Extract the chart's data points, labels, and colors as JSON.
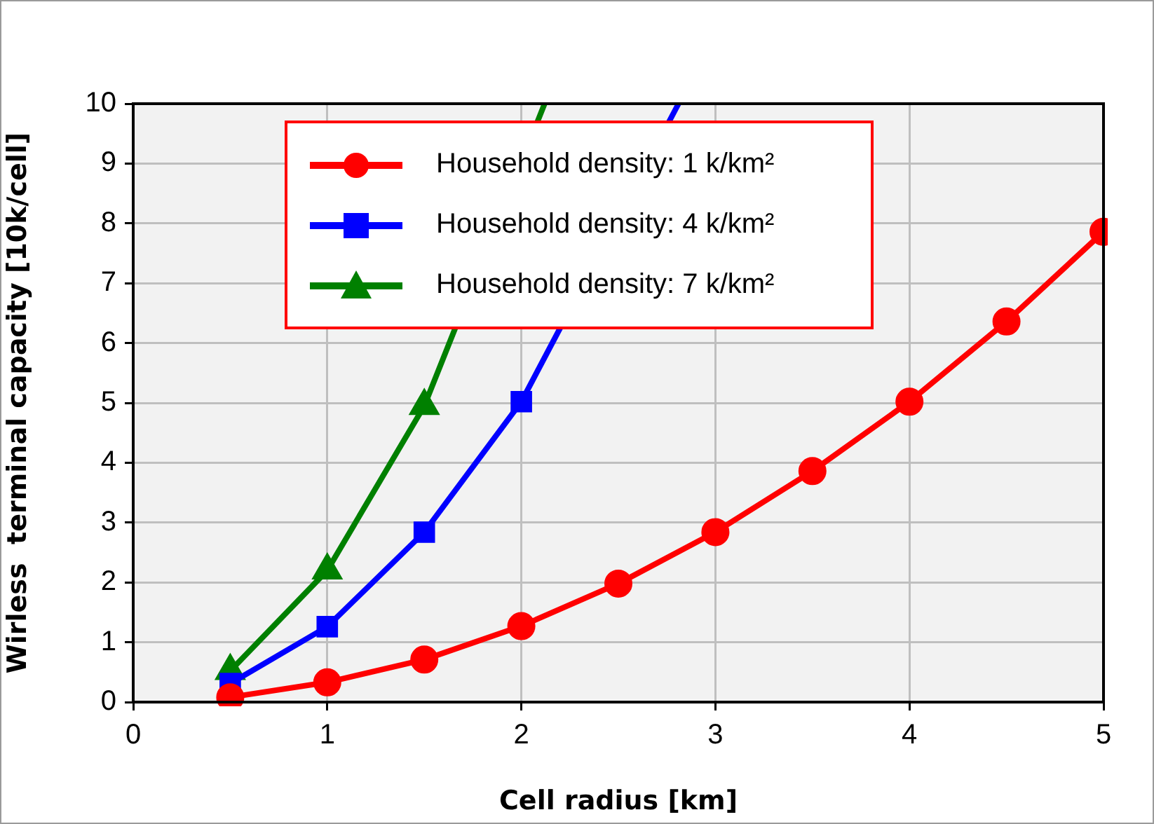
{
  "chart_data": {
    "type": "line",
    "xlabel": "Cell radius [km]",
    "ylabel": "Wirless  terminal capacity [10k/cell]",
    "xlim": [
      0,
      5
    ],
    "xticks": [
      0,
      1,
      2,
      3,
      4,
      5
    ],
    "ylim": [
      0,
      10
    ],
    "yticks": [
      0,
      1,
      2,
      3,
      4,
      5,
      6,
      7,
      8,
      9,
      10
    ],
    "grid": true,
    "legend": "top",
    "line_style": "solid",
    "series": [
      {
        "name": "Household density: 1 k/km²",
        "color": "#ff0000",
        "marker": "circle",
        "x": [
          0.5,
          1,
          1.5,
          2,
          2.5,
          3,
          3.5,
          4,
          4.5,
          5
        ],
        "values": [
          0.08,
          0.33,
          0.71,
          1.27,
          1.98,
          2.84,
          3.86,
          5.02,
          6.36,
          7.86
        ]
      },
      {
        "name": "Household density: 4 k/km²",
        "color": "#0000ff",
        "marker": "square",
        "x": [
          0.5,
          1,
          1.5,
          2,
          2.5,
          2.81
        ],
        "values": [
          0.31,
          1.26,
          2.84,
          5.02,
          null,
          10
        ]
      },
      {
        "name": "Household density: 7 k/km²",
        "color": "#008000",
        "marker": "triangle",
        "x": [
          0.5,
          1,
          1.5,
          2,
          2.12
        ],
        "values": [
          0.52,
          2.2,
          4.95,
          null,
          10
        ]
      }
    ]
  }
}
